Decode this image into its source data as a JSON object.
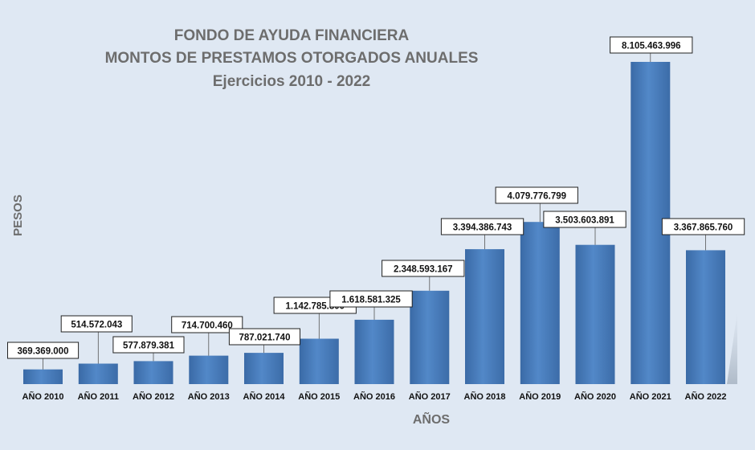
{
  "chart_data": {
    "type": "bar",
    "title": [
      "FONDO DE AYUDA FINANCIERA",
      "MONTOS DE PRESTAMOS OTORGADOS ANUALES",
      "Ejercicios 2010 - 2022"
    ],
    "xlabel": "AÑOS",
    "ylabel": "PESOS",
    "categories": [
      "AÑO 2010",
      "AÑO 2011",
      "AÑO 2012",
      "AÑO 2013",
      "AÑO 2014",
      "AÑO 2015",
      "AÑO 2016",
      "AÑO 2017",
      "AÑO 2018",
      "AÑO 2019",
      "AÑO 2020",
      "AÑO 2021",
      "AÑO 2022"
    ],
    "values": [
      369369000,
      514572043,
      577879381,
      714700460,
      787021740,
      1142785800,
      1618581325,
      2348593167,
      3394386743,
      4079776799,
      3503603891,
      8105463996,
      3367865760
    ],
    "data_labels": [
      "369.369.000",
      "514.572.043",
      "577.879.381",
      "714.700.460",
      "787.021.740",
      "1.142.785.800",
      "1.618.581.325",
      "2.348.593.167",
      "3.394.386.743",
      "4.079.776.799",
      "3.503.603.891",
      "8.105.463.996",
      "3.367.865.760"
    ],
    "ylim": [
      0,
      8500000000
    ],
    "grid": false,
    "legend": "none",
    "bar_color": "#4a7ebb",
    "background_color": "#dfe8f3"
  }
}
